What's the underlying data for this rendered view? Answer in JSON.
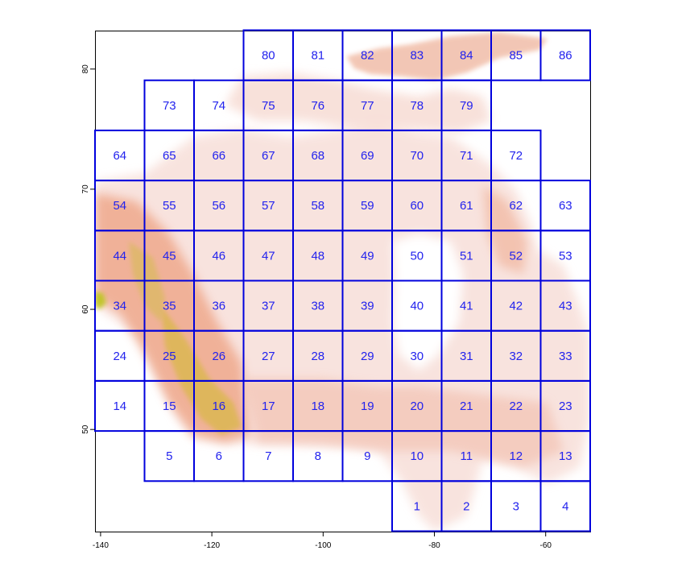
{
  "colors": {
    "grid": "#0000dd",
    "label": "#2222ee",
    "terrain_low": "#f7d9d2",
    "terrain_mid": "#efa98c",
    "terrain_high": "#d9b84a",
    "terrain_peak": "#bcc51a"
  },
  "axes": {
    "x_ticks": [
      {
        "value": -140,
        "label": "-140"
      },
      {
        "value": -120,
        "label": "-120"
      },
      {
        "value": -100,
        "label": "-100"
      },
      {
        "value": -80,
        "label": "-80"
      },
      {
        "value": -60,
        "label": "-60"
      }
    ],
    "y_ticks": [
      {
        "value": 50,
        "label": "50"
      },
      {
        "value": 60,
        "label": "60"
      },
      {
        "value": 70,
        "label": "70"
      },
      {
        "value": 80,
        "label": "80"
      }
    ],
    "x_range": [
      -141,
      -52
    ],
    "y_range": [
      41.5,
      83.2
    ]
  },
  "tiles": [
    {
      "id": "1",
      "col": 6,
      "row": 0
    },
    {
      "id": "2",
      "col": 7,
      "row": 0
    },
    {
      "id": "3",
      "col": 8,
      "row": 0
    },
    {
      "id": "4",
      "col": 9,
      "row": 0
    },
    {
      "id": "5",
      "col": 1,
      "row": 1
    },
    {
      "id": "6",
      "col": 2,
      "row": 1
    },
    {
      "id": "7",
      "col": 3,
      "row": 1
    },
    {
      "id": "8",
      "col": 4,
      "row": 1
    },
    {
      "id": "9",
      "col": 5,
      "row": 1
    },
    {
      "id": "10",
      "col": 6,
      "row": 1
    },
    {
      "id": "11",
      "col": 7,
      "row": 1
    },
    {
      "id": "12",
      "col": 8,
      "row": 1
    },
    {
      "id": "13",
      "col": 9,
      "row": 1
    },
    {
      "id": "14",
      "col": 0,
      "row": 2
    },
    {
      "id": "15",
      "col": 1,
      "row": 2
    },
    {
      "id": "16",
      "col": 2,
      "row": 2
    },
    {
      "id": "17",
      "col": 3,
      "row": 2
    },
    {
      "id": "18",
      "col": 4,
      "row": 2
    },
    {
      "id": "19",
      "col": 5,
      "row": 2
    },
    {
      "id": "20",
      "col": 6,
      "row": 2
    },
    {
      "id": "21",
      "col": 7,
      "row": 2
    },
    {
      "id": "22",
      "col": 8,
      "row": 2
    },
    {
      "id": "23",
      "col": 9,
      "row": 2
    },
    {
      "id": "24",
      "col": 0,
      "row": 3
    },
    {
      "id": "25",
      "col": 1,
      "row": 3
    },
    {
      "id": "26",
      "col": 2,
      "row": 3
    },
    {
      "id": "27",
      "col": 3,
      "row": 3
    },
    {
      "id": "28",
      "col": 4,
      "row": 3
    },
    {
      "id": "29",
      "col": 5,
      "row": 3
    },
    {
      "id": "30",
      "col": 6,
      "row": 3
    },
    {
      "id": "31",
      "col": 7,
      "row": 3
    },
    {
      "id": "32",
      "col": 8,
      "row": 3
    },
    {
      "id": "33",
      "col": 9,
      "row": 3
    },
    {
      "id": "34",
      "col": 0,
      "row": 4
    },
    {
      "id": "35",
      "col": 1,
      "row": 4
    },
    {
      "id": "36",
      "col": 2,
      "row": 4
    },
    {
      "id": "37",
      "col": 3,
      "row": 4
    },
    {
      "id": "38",
      "col": 4,
      "row": 4
    },
    {
      "id": "39",
      "col": 5,
      "row": 4
    },
    {
      "id": "40",
      "col": 6,
      "row": 4
    },
    {
      "id": "41",
      "col": 7,
      "row": 4
    },
    {
      "id": "42",
      "col": 8,
      "row": 4
    },
    {
      "id": "43",
      "col": 9,
      "row": 4
    },
    {
      "id": "44",
      "col": 0,
      "row": 5
    },
    {
      "id": "45",
      "col": 1,
      "row": 5
    },
    {
      "id": "46",
      "col": 2,
      "row": 5
    },
    {
      "id": "47",
      "col": 3,
      "row": 5
    },
    {
      "id": "48",
      "col": 4,
      "row": 5
    },
    {
      "id": "49",
      "col": 5,
      "row": 5
    },
    {
      "id": "50",
      "col": 6,
      "row": 5
    },
    {
      "id": "51",
      "col": 7,
      "row": 5
    },
    {
      "id": "52",
      "col": 8,
      "row": 5
    },
    {
      "id": "53",
      "col": 9,
      "row": 5
    },
    {
      "id": "54",
      "col": 0,
      "row": 6
    },
    {
      "id": "55",
      "col": 1,
      "row": 6
    },
    {
      "id": "56",
      "col": 2,
      "row": 6
    },
    {
      "id": "57",
      "col": 3,
      "row": 6
    },
    {
      "id": "58",
      "col": 4,
      "row": 6
    },
    {
      "id": "59",
      "col": 5,
      "row": 6
    },
    {
      "id": "60",
      "col": 6,
      "row": 6
    },
    {
      "id": "61",
      "col": 7,
      "row": 6
    },
    {
      "id": "62",
      "col": 8,
      "row": 6
    },
    {
      "id": "63",
      "col": 9,
      "row": 6
    },
    {
      "id": "64",
      "col": 0,
      "row": 7
    },
    {
      "id": "65",
      "col": 1,
      "row": 7
    },
    {
      "id": "66",
      "col": 2,
      "row": 7
    },
    {
      "id": "67",
      "col": 3,
      "row": 7
    },
    {
      "id": "68",
      "col": 4,
      "row": 7
    },
    {
      "id": "69",
      "col": 5,
      "row": 7
    },
    {
      "id": "70",
      "col": 6,
      "row": 7
    },
    {
      "id": "71",
      "col": 7,
      "row": 7
    },
    {
      "id": "72",
      "col": 8,
      "row": 7
    },
    {
      "id": "73",
      "col": 1,
      "row": 8
    },
    {
      "id": "74",
      "col": 2,
      "row": 8
    },
    {
      "id": "75",
      "col": 3,
      "row": 8
    },
    {
      "id": "76",
      "col": 4,
      "row": 8
    },
    {
      "id": "77",
      "col": 5,
      "row": 8
    },
    {
      "id": "78",
      "col": 6,
      "row": 8
    },
    {
      "id": "79",
      "col": 7,
      "row": 8
    },
    {
      "id": "80",
      "col": 3,
      "row": 9
    },
    {
      "id": "81",
      "col": 4,
      "row": 9
    },
    {
      "id": "82",
      "col": 5,
      "row": 9
    },
    {
      "id": "83",
      "col": 6,
      "row": 9
    },
    {
      "id": "84",
      "col": 7,
      "row": 9
    },
    {
      "id": "85",
      "col": 8,
      "row": 9
    },
    {
      "id": "86",
      "col": 9,
      "row": 9
    }
  ]
}
